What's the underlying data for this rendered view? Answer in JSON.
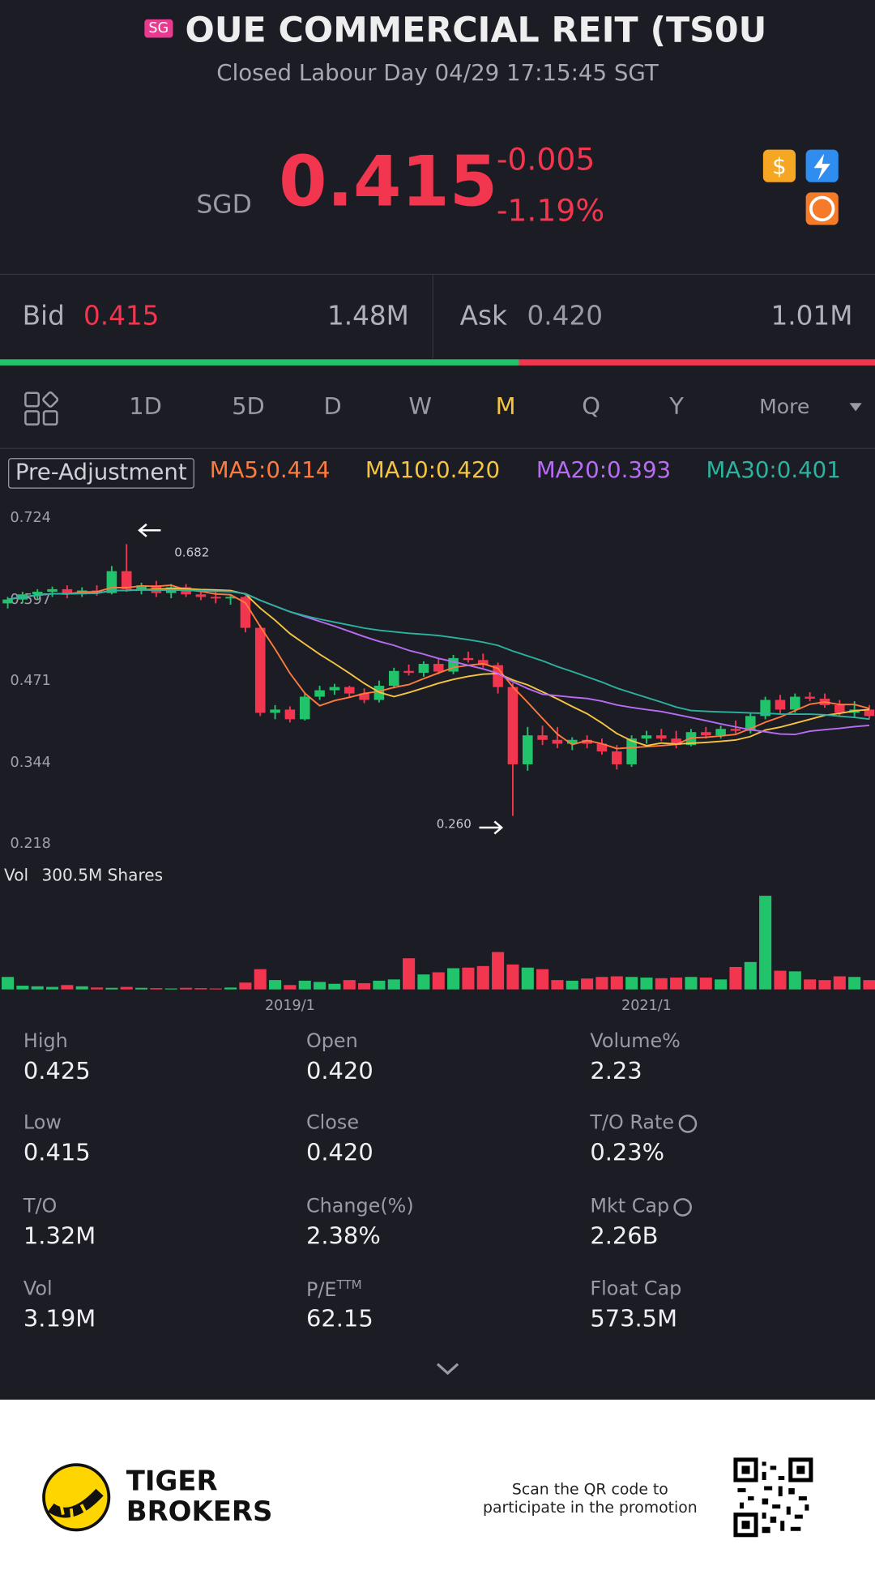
{
  "header": {
    "badge": "SG",
    "title": "OUE COMMERCIAL REIT (TS0U",
    "status": "Closed Labour Day 04/29 17:15:45 SGT"
  },
  "quote": {
    "currency": "SGD",
    "price": "0.415",
    "change": "-0.005",
    "change_pct": "-1.19%"
  },
  "bid_ask": {
    "bid_label": "Bid",
    "bid_price": "0.415",
    "bid_size": "1.48M",
    "ask_label": "Ask",
    "ask_price": "0.420",
    "ask_size": "1.01M"
  },
  "tabs": [
    "1D",
    "5D",
    "D",
    "W",
    "M",
    "Q",
    "Y",
    "More"
  ],
  "indicators": {
    "adjustment": "Pre-Adjustment",
    "ma": [
      {
        "label": "MA5:0.414",
        "period": 5,
        "color": "#ff7a3d"
      },
      {
        "label": "MA10:0.420",
        "period": 10,
        "color": "#f5c542"
      },
      {
        "label": "MA20:0.393",
        "period": 20,
        "color": "#b86cf5"
      },
      {
        "label": "MA30:0.401",
        "period": 30,
        "color": "#2bb3a0"
      }
    ]
  },
  "chart_data": {
    "type": "candlestick",
    "categories": [
      null,
      null,
      null,
      null,
      null,
      null,
      null,
      null,
      null,
      null,
      null,
      null,
      null,
      null,
      null,
      null,
      null,
      null,
      null,
      "2019/1",
      null,
      null,
      null,
      null,
      null,
      null,
      null,
      null,
      null,
      null,
      null,
      null,
      null,
      null,
      null,
      null,
      null,
      null,
      null,
      null,
      null,
      null,
      null,
      "2021/1",
      null,
      null,
      null,
      null,
      null,
      null,
      null,
      null,
      null,
      null,
      null,
      null,
      null,
      null,
      null
    ],
    "open": [
      0.59,
      0.596,
      0.604,
      0.608,
      0.612,
      0.604,
      0.61,
      0.606,
      0.64,
      0.612,
      0.618,
      0.606,
      0.615,
      0.604,
      0.6,
      0.598,
      0.6,
      0.552,
      0.42,
      0.425,
      0.41,
      0.445,
      0.455,
      0.46,
      0.45,
      0.44,
      0.462,
      0.485,
      0.482,
      0.496,
      0.484,
      0.505,
      0.502,
      0.494,
      0.46,
      0.34,
      0.385,
      0.378,
      0.372,
      0.378,
      0.372,
      0.36,
      0.34,
      0.38,
      0.385,
      0.38,
      0.37,
      0.39,
      0.385,
      0.395,
      0.392,
      0.415,
      0.44,
      0.425,
      0.445,
      0.442,
      0.432,
      0.42,
      0.425
    ],
    "high": [
      0.6,
      0.608,
      0.612,
      0.616,
      0.618,
      0.615,
      0.618,
      0.648,
      0.682,
      0.622,
      0.625,
      0.62,
      0.62,
      0.612,
      0.61,
      0.604,
      0.602,
      0.556,
      0.432,
      0.43,
      0.45,
      0.462,
      0.465,
      0.462,
      0.458,
      0.47,
      0.49,
      0.495,
      0.5,
      0.505,
      0.51,
      0.515,
      0.512,
      0.498,
      0.466,
      0.398,
      0.4,
      0.398,
      0.382,
      0.385,
      0.38,
      0.37,
      0.385,
      0.392,
      0.395,
      0.392,
      0.395,
      0.398,
      0.4,
      0.408,
      0.42,
      0.445,
      0.448,
      0.45,
      0.452,
      0.45,
      0.44,
      0.438,
      0.432
    ],
    "low": [
      0.582,
      0.59,
      0.596,
      0.6,
      0.598,
      0.6,
      0.602,
      0.604,
      0.608,
      0.604,
      0.6,
      0.598,
      0.6,
      0.595,
      0.59,
      0.588,
      0.545,
      0.415,
      0.41,
      0.405,
      0.408,
      0.44,
      0.448,
      0.445,
      0.435,
      0.436,
      0.458,
      0.478,
      0.476,
      0.48,
      0.48,
      0.498,
      0.49,
      0.45,
      0.26,
      0.33,
      0.37,
      0.365,
      0.362,
      0.365,
      0.355,
      0.332,
      0.336,
      0.372,
      0.376,
      0.365,
      0.368,
      0.38,
      0.38,
      0.388,
      0.388,
      0.41,
      0.418,
      0.42,
      0.438,
      0.428,
      0.415,
      0.412,
      0.41
    ],
    "close": [
      0.596,
      0.604,
      0.608,
      0.612,
      0.604,
      0.61,
      0.606,
      0.64,
      0.612,
      0.618,
      0.606,
      0.615,
      0.604,
      0.6,
      0.598,
      0.6,
      0.552,
      0.42,
      0.425,
      0.41,
      0.445,
      0.455,
      0.46,
      0.45,
      0.44,
      0.462,
      0.485,
      0.482,
      0.496,
      0.484,
      0.505,
      0.502,
      0.494,
      0.46,
      0.34,
      0.385,
      0.378,
      0.372,
      0.378,
      0.372,
      0.36,
      0.34,
      0.38,
      0.385,
      0.38,
      0.37,
      0.39,
      0.385,
      0.395,
      0.392,
      0.415,
      0.44,
      0.425,
      0.445,
      0.442,
      0.432,
      0.42,
      0.425,
      0.415
    ],
    "volume": [
      40,
      12,
      10,
      8,
      14,
      10,
      6,
      5,
      8,
      5,
      4,
      3,
      5,
      4,
      3,
      6,
      22,
      65,
      30,
      14,
      28,
      24,
      18,
      30,
      20,
      28,
      32,
      100,
      48,
      55,
      68,
      70,
      75,
      120,
      80,
      70,
      65,
      30,
      28,
      35,
      40,
      42,
      40,
      38,
      36,
      38,
      40,
      38,
      32,
      72,
      88,
      300.5,
      60,
      58,
      32,
      30,
      42,
      40,
      30
    ],
    "ylim": [
      0.218,
      0.724
    ],
    "yticks": [
      0.724,
      0.597,
      0.471,
      0.344,
      0.218
    ],
    "max_label": 0.682,
    "min_label": {
      "value": 0.26,
      "label": "0.260"
    },
    "up_color": "#21c46b",
    "down_color": "#f2364f",
    "flat_color": "#8a8aa2",
    "vol_label": "Vol",
    "vol_title": "300.5M Shares",
    "vol_ylim": [
      0,
      300.5
    ]
  },
  "stats": [
    {
      "label": "High",
      "value": "0.425"
    },
    {
      "label": "Open",
      "value": "0.420"
    },
    {
      "label": "Volume%",
      "value": "2.23"
    },
    {
      "label": "Low",
      "value": "0.415"
    },
    {
      "label": "Close",
      "value": "0.420"
    },
    {
      "label": "T/O Rate",
      "value": "0.23%"
    },
    {
      "label": "T/O",
      "value": "1.32M"
    },
    {
      "label": "Change(%)",
      "value": "2.38%"
    },
    {
      "label": "Mkt Cap",
      "value": "2.26B"
    },
    {
      "label": "Vol",
      "value": "3.19M"
    },
    {
      "label": "P/E",
      "sup": "TTM",
      "value": "62.15"
    },
    {
      "label": "Float Cap",
      "value": "573.5M"
    }
  ],
  "footer": {
    "brand_line1": "TIGER",
    "brand_line2": "BROKERS",
    "promo_line1": "Scan the QR code to",
    "promo_line2": "participate in the promotion"
  }
}
